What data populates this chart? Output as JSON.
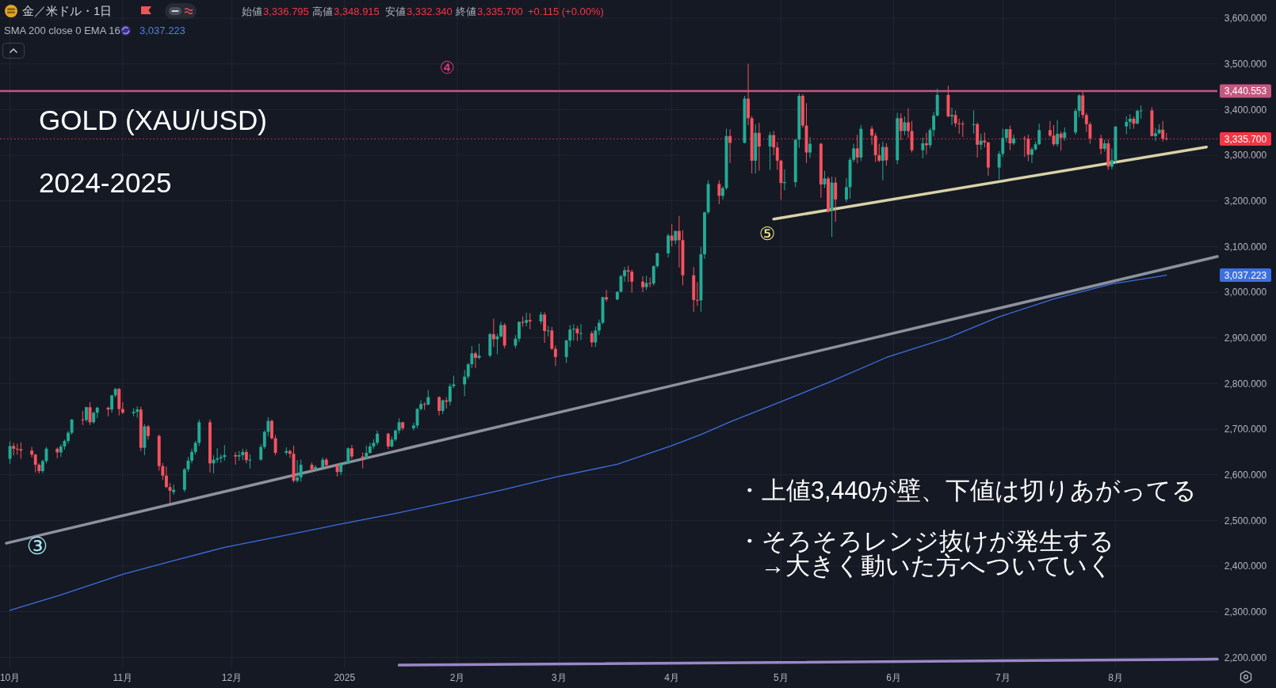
{
  "chart_data": {
    "type": "candlestick",
    "title": "GOLD (XAU/USD)",
    "subtitle": "2024-2025",
    "xlim": [
      "2024-09-30",
      "2025-08-29"
    ],
    "xticks": [
      {
        "value": "2024-10-01",
        "label": "10月"
      },
      {
        "value": "2024-11-01",
        "label": "11月"
      },
      {
        "value": "2024-12-01",
        "label": "12月"
      },
      {
        "value": "2025-01-01",
        "label": "2025"
      },
      {
        "value": "2025-02-01",
        "label": "2月"
      },
      {
        "value": "2025-03-01",
        "label": "3月"
      },
      {
        "value": "2025-04-01",
        "label": "4月"
      },
      {
        "value": "2025-05-01",
        "label": "5月"
      },
      {
        "value": "2025-06-01",
        "label": "6月"
      },
      {
        "value": "2025-07-01",
        "label": "7月"
      },
      {
        "value": "2025-08-01",
        "label": "8月"
      }
    ],
    "ylim": [
      2178,
      3640
    ],
    "yticks": [
      {
        "value": 2200,
        "label": "2,200.000"
      },
      {
        "value": 2300,
        "label": "2,300.000"
      },
      {
        "value": 2400,
        "label": "2,400.000"
      },
      {
        "value": 2500,
        "label": "2,500.000"
      },
      {
        "value": 2600,
        "label": "2,600.000"
      },
      {
        "value": 2700,
        "label": "2,700.000"
      },
      {
        "value": 2800,
        "label": "2,800.000"
      },
      {
        "value": 2900,
        "label": "2,900.000"
      },
      {
        "value": 3000,
        "label": "3,000.000"
      },
      {
        "value": 3100,
        "label": "3,100.000"
      },
      {
        "value": 3200,
        "label": "3,200.000"
      },
      {
        "value": 3300,
        "label": "3,300.000"
      },
      {
        "value": 3400,
        "label": "3,400.000"
      },
      {
        "value": 3500,
        "label": "3,500.000"
      },
      {
        "value": 3600,
        "label": "3,600.000"
      }
    ],
    "grid": true,
    "ref_lines": [
      {
        "axis": "y",
        "value": 3440.553,
        "label": "3,440.553",
        "color": "#c4587f"
      },
      {
        "axis": "y",
        "value": 3335.7,
        "label": "3,335.700",
        "color": "#f23645",
        "line_style": "dotted"
      }
    ],
    "annotations": [
      "金／米ドル・1日",
      "始値",
      "3,336.795",
      "高値",
      "3,348.915",
      "安値",
      "3,332.340",
      "終値",
      "3,335.700",
      "+0.115 (+0.00%)",
      "SMA 200 close 0 EMA 16",
      "3,037.223",
      "・上値3,440が壁、下値は切りあがってる",
      "・そろそろレンジ抜けが発生する",
      "→大きく動いた方へついていく",
      "③",
      "④",
      "⑤",
      "3,037.223"
    ],
    "series": [
      {
        "type": "line",
        "color": "#3d6fe0",
        "x": [
          "2024-10-01",
          "2024-10-15",
          "2024-11-01",
          "2024-11-15",
          "2024-11-29",
          "2024-12-16",
          "2024-12-31",
          "2025-01-16",
          "2025-01-31",
          "2025-02-14",
          "2025-02-28",
          "2025-03-17",
          "2025-04-01",
          "2025-04-09",
          "2025-04-17",
          "2025-05-01",
          "2025-05-15",
          "2025-05-30",
          "2025-06-16",
          "2025-06-30",
          "2025-07-15",
          "2025-07-31",
          "2025-08-15"
        ],
        "values": [
          2303,
          2337,
          2382,
          2412,
          2441,
          2468,
          2492,
          2517,
          2543,
          2568,
          2595,
          2623,
          2664,
          2688,
          2716,
          2760,
          2805,
          2857,
          2900,
          2946,
          2985,
          3018,
          3037
        ]
      },
      {
        "type": "line",
        "color": "#8c919e",
        "x": [
          "2024-09-30",
          "2025-08-29"
        ],
        "values": [
          2450,
          3078
        ]
      },
      {
        "type": "line",
        "color": "#d8d2a8",
        "x": [
          "2025-04-29",
          "2025-08-26"
        ],
        "values": [
          3160,
          3318
        ]
      },
      {
        "type": "line",
        "color": "#9a87c6",
        "x": [
          "2025-01-16",
          "2025-08-29"
        ],
        "values": [
          2183,
          2196
        ]
      },
      {
        "x": [
          "2024-10-01",
          "2024-10-02",
          "2024-10-03",
          "2024-10-04",
          "2024-10-07",
          "2024-10-08",
          "2024-10-09",
          "2024-10-10",
          "2024-10-11",
          "2024-10-14",
          "2024-10-15",
          "2024-10-16",
          "2024-10-17",
          "2024-10-18",
          "2024-10-21",
          "2024-10-22",
          "2024-10-23",
          "2024-10-24",
          "2024-10-25",
          "2024-10-28",
          "2024-10-29",
          "2024-10-30",
          "2024-10-31",
          "2024-11-01",
          "2024-11-04",
          "2024-11-05",
          "2024-11-06",
          "2024-11-07",
          "2024-11-08",
          "2024-11-11",
          "2024-11-12",
          "2024-11-13",
          "2024-11-14",
          "2024-11-15",
          "2024-11-18",
          "2024-11-19",
          "2024-11-20",
          "2024-11-21",
          "2024-11-22",
          "2024-11-25",
          "2024-11-26",
          "2024-11-27",
          "2024-11-28",
          "2024-11-29",
          "2024-12-02",
          "2024-12-03",
          "2024-12-04",
          "2024-12-05",
          "2024-12-06",
          "2024-12-09",
          "2024-12-10",
          "2024-12-11",
          "2024-12-12",
          "2024-12-13",
          "2024-12-16",
          "2024-12-17",
          "2024-12-18",
          "2024-12-19",
          "2024-12-20",
          "2024-12-23",
          "2024-12-24",
          "2024-12-26",
          "2024-12-27",
          "2024-12-30",
          "2024-12-31",
          "2025-01-02",
          "2025-01-03",
          "2025-01-06",
          "2025-01-07",
          "2025-01-08",
          "2025-01-09",
          "2025-01-10",
          "2025-01-13",
          "2025-01-14",
          "2025-01-15",
          "2025-01-16",
          "2025-01-17",
          "2025-01-20",
          "2025-01-21",
          "2025-01-22",
          "2025-01-23",
          "2025-01-24",
          "2025-01-27",
          "2025-01-28",
          "2025-01-29",
          "2025-01-30",
          "2025-01-31",
          "2025-02-03",
          "2025-02-04",
          "2025-02-05",
          "2025-02-06",
          "2025-02-07",
          "2025-02-10",
          "2025-02-11",
          "2025-02-12",
          "2025-02-13",
          "2025-02-14",
          "2025-02-17",
          "2025-02-18",
          "2025-02-19",
          "2025-02-20",
          "2025-02-21",
          "2025-02-24",
          "2025-02-25",
          "2025-02-26",
          "2025-02-27",
          "2025-02-28",
          "2025-03-03",
          "2025-03-04",
          "2025-03-05",
          "2025-03-06",
          "2025-03-07",
          "2025-03-10",
          "2025-03-11",
          "2025-03-12",
          "2025-03-13",
          "2025-03-14",
          "2025-03-17",
          "2025-03-18",
          "2025-03-19",
          "2025-03-20",
          "2025-03-21",
          "2025-03-24",
          "2025-03-25",
          "2025-03-26",
          "2025-03-27",
          "2025-03-28",
          "2025-03-31",
          "2025-04-01",
          "2025-04-02",
          "2025-04-03",
          "2025-04-04",
          "2025-04-07",
          "2025-04-08",
          "2025-04-09",
          "2025-04-10",
          "2025-04-11",
          "2025-04-14",
          "2025-04-15",
          "2025-04-16",
          "2025-04-17",
          "2025-04-21",
          "2025-04-22",
          "2025-04-23",
          "2025-04-24",
          "2025-04-25",
          "2025-04-28",
          "2025-04-29",
          "2025-04-30",
          "2025-05-01",
          "2025-05-02",
          "2025-05-05",
          "2025-05-06",
          "2025-05-07",
          "2025-05-08",
          "2025-05-09",
          "2025-05-12",
          "2025-05-13",
          "2025-05-14",
          "2025-05-15",
          "2025-05-16",
          "2025-05-19",
          "2025-05-20",
          "2025-05-21",
          "2025-05-22",
          "2025-05-23",
          "2025-05-26",
          "2025-05-27",
          "2025-05-28",
          "2025-05-29",
          "2025-05-30",
          "2025-06-02",
          "2025-06-03",
          "2025-06-04",
          "2025-06-05",
          "2025-06-06",
          "2025-06-09",
          "2025-06-10",
          "2025-06-11",
          "2025-06-12",
          "2025-06-13",
          "2025-06-16",
          "2025-06-17",
          "2025-06-18",
          "2025-06-19",
          "2025-06-20",
          "2025-06-23",
          "2025-06-24",
          "2025-06-25",
          "2025-06-26",
          "2025-06-27",
          "2025-06-30",
          "2025-07-01",
          "2025-07-02",
          "2025-07-03",
          "2025-07-04",
          "2025-07-07",
          "2025-07-08",
          "2025-07-09",
          "2025-07-10",
          "2025-07-11",
          "2025-07-14",
          "2025-07-15",
          "2025-07-16",
          "2025-07-17",
          "2025-07-18",
          "2025-07-21",
          "2025-07-22",
          "2025-07-23",
          "2025-07-24",
          "2025-07-25",
          "2025-07-28",
          "2025-07-29",
          "2025-07-30",
          "2025-07-31",
          "2025-08-01",
          "2025-08-04",
          "2025-08-05",
          "2025-08-06",
          "2025-08-07",
          "2025-08-08",
          "2025-08-11",
          "2025-08-12",
          "2025-08-13",
          "2025-08-14",
          "2025-08-15"
        ],
        "ohlc": [
          [
            2635,
            2673,
            2624,
            2663
          ],
          [
            2663,
            2670,
            2642,
            2657
          ],
          [
            2657,
            2668,
            2644,
            2656
          ],
          [
            2656,
            2671,
            2635,
            2653
          ],
          [
            2653,
            2661,
            2638,
            2644
          ],
          [
            2644,
            2646,
            2605,
            2622
          ],
          [
            2622,
            2625,
            2603,
            2608
          ],
          [
            2608,
            2633,
            2604,
            2630
          ],
          [
            2630,
            2661,
            2625,
            2657
          ],
          [
            2657,
            2660,
            2636,
            2649
          ],
          [
            2649,
            2667,
            2639,
            2662
          ],
          [
            2662,
            2677,
            2655,
            2674
          ],
          [
            2674,
            2696,
            2668,
            2692
          ],
          [
            2692,
            2722,
            2688,
            2721
          ],
          [
            2721,
            2740,
            2709,
            2720
          ],
          [
            2720,
            2749,
            2716,
            2748
          ],
          [
            2748,
            2759,
            2709,
            2715
          ],
          [
            2715,
            2738,
            2712,
            2736
          ],
          [
            2736,
            2749,
            2724,
            2747
          ],
          [
            2747,
            2749,
            2728,
            2743
          ],
          [
            2743,
            2775,
            2736,
            2774
          ],
          [
            2774,
            2790,
            2770,
            2788
          ],
          [
            2788,
            2790,
            2730,
            2744
          ],
          [
            2744,
            2759,
            2733,
            2736
          ],
          [
            2735,
            2746,
            2728,
            2738
          ],
          [
            2738,
            2750,
            2725,
            2743
          ],
          [
            2743,
            2749,
            2652,
            2659
          ],
          [
            2659,
            2711,
            2643,
            2706
          ],
          [
            2706,
            2709,
            2677,
            2685
          ],
          [
            2685,
            2688,
            2609,
            2619
          ],
          [
            2619,
            2626,
            2589,
            2598
          ],
          [
            2598,
            2618,
            2571,
            2573
          ],
          [
            2573,
            2582,
            2537,
            2565
          ],
          [
            2562,
            2579,
            2556,
            2567
          ],
          [
            2567,
            2615,
            2562,
            2612
          ],
          [
            2612,
            2639,
            2606,
            2631
          ],
          [
            2631,
            2657,
            2625,
            2650
          ],
          [
            2650,
            2674,
            2644,
            2670
          ],
          [
            2670,
            2721,
            2663,
            2715
          ],
          [
            2715,
            2721,
            2605,
            2625
          ],
          [
            2625,
            2643,
            2603,
            2633
          ],
          [
            2633,
            2658,
            2626,
            2636
          ],
          [
            2636,
            2645,
            2626,
            2639
          ],
          [
            2639,
            2665,
            2631,
            2643
          ],
          [
            2643,
            2650,
            2622,
            2640
          ],
          [
            2640,
            2652,
            2631,
            2643
          ],
          [
            2643,
            2657,
            2632,
            2650
          ],
          [
            2650,
            2656,
            2625,
            2632
          ],
          [
            2632,
            2645,
            2614,
            2633
          ],
          [
            2633,
            2667,
            2631,
            2661
          ],
          [
            2661,
            2697,
            2657,
            2694
          ],
          [
            2694,
            2726,
            2684,
            2718
          ],
          [
            2718,
            2721,
            2677,
            2680
          ],
          [
            2680,
            2687,
            2643,
            2648
          ],
          [
            2648,
            2660,
            2643,
            2652
          ],
          [
            2652,
            2655,
            2637,
            2646
          ],
          [
            2646,
            2664,
            2583,
            2587
          ],
          [
            2587,
            2632,
            2583,
            2594
          ],
          [
            2594,
            2633,
            2585,
            2622
          ],
          [
            2622,
            2627,
            2605,
            2612
          ],
          [
            2612,
            2621,
            2609,
            2617
          ],
          [
            2617,
            2638,
            2615,
            2633
          ],
          [
            2633,
            2637,
            2617,
            2621
          ],
          [
            2621,
            2624,
            2596,
            2606
          ],
          [
            2606,
            2627,
            2599,
            2624
          ],
          [
            2624,
            2660,
            2623,
            2658
          ],
          [
            2658,
            2665,
            2634,
            2640
          ],
          [
            2640,
            2649,
            2614,
            2636
          ],
          [
            2636,
            2664,
            2634,
            2648
          ],
          [
            2648,
            2670,
            2646,
            2662
          ],
          [
            2662,
            2678,
            2657,
            2670
          ],
          [
            2670,
            2697,
            2665,
            2690
          ],
          [
            2690,
            2692,
            2656,
            2662
          ],
          [
            2662,
            2684,
            2660,
            2677
          ],
          [
            2677,
            2699,
            2673,
            2697
          ],
          [
            2697,
            2724,
            2690,
            2715
          ],
          [
            2715,
            2716,
            2697,
            2702
          ],
          [
            2702,
            2714,
            2697,
            2708
          ],
          [
            2708,
            2746,
            2702,
            2744
          ],
          [
            2744,
            2763,
            2741,
            2755
          ],
          [
            2755,
            2759,
            2742,
            2754
          ],
          [
            2754,
            2786,
            2752,
            2770
          ],
          [
            2770,
            2772,
            2730,
            2740
          ],
          [
            2740,
            2765,
            2733,
            2763
          ],
          [
            2763,
            2770,
            2745,
            2760
          ],
          [
            2760,
            2800,
            2752,
            2794
          ],
          [
            2794,
            2817,
            2790,
            2798
          ],
          [
            2798,
            2830,
            2772,
            2815
          ],
          [
            2815,
            2845,
            2810,
            2842
          ],
          [
            2842,
            2882,
            2834,
            2866
          ],
          [
            2866,
            2870,
            2834,
            2856
          ],
          [
            2856,
            2887,
            2853,
            2861
          ],
          [
            2861,
            2911,
            2857,
            2908
          ],
          [
            2908,
            2942,
            2880,
            2897
          ],
          [
            2897,
            2909,
            2864,
            2903
          ],
          [
            2903,
            2935,
            2901,
            2928
          ],
          [
            2928,
            2932,
            2877,
            2883
          ],
          [
            2883,
            2906,
            2877,
            2898
          ],
          [
            2898,
            2936,
            2891,
            2935
          ],
          [
            2935,
            2947,
            2924,
            2933
          ],
          [
            2933,
            2955,
            2925,
            2939
          ],
          [
            2939,
            2954,
            2919,
            2936
          ],
          [
            2936,
            2957,
            2930,
            2951
          ],
          [
            2951,
            2956,
            2889,
            2915
          ],
          [
            2915,
            2926,
            2903,
            2916
          ],
          [
            2916,
            2924,
            2873,
            2876
          ],
          [
            2876,
            2883,
            2838,
            2858
          ],
          [
            2858,
            2896,
            2845,
            2894
          ],
          [
            2894,
            2928,
            2880,
            2918
          ],
          [
            2918,
            2930,
            2894,
            2920
          ],
          [
            2920,
            2926,
            2893,
            2910
          ],
          [
            2910,
            2930,
            2895,
            2910
          ],
          [
            2910,
            2915,
            2880,
            2890
          ],
          [
            2890,
            2925,
            2880,
            2916
          ],
          [
            2916,
            2940,
            2906,
            2933
          ],
          [
            2933,
            2990,
            2930,
            2989
          ],
          [
            2989,
            3005,
            2979,
            2984
          ],
          [
            2984,
            3001,
            2982,
            3001
          ],
          [
            3001,
            3038,
            2999,
            3035
          ],
          [
            3035,
            3055,
            3023,
            3048
          ],
          [
            3048,
            3058,
            3022,
            3045
          ],
          [
            3045,
            3049,
            2999,
            3023
          ],
          [
            3023,
            3035,
            3000,
            3011
          ],
          [
            3011,
            3036,
            3005,
            3020
          ],
          [
            3020,
            3032,
            3011,
            3019
          ],
          [
            3019,
            3059,
            3014,
            3057
          ],
          [
            3057,
            3087,
            3053,
            3085
          ],
          [
            3085,
            3128,
            3076,
            3124
          ],
          [
            3124,
            3149,
            3100,
            3113
          ],
          [
            3113,
            3135,
            3105,
            3134
          ],
          [
            3134,
            3167,
            3054,
            3114
          ],
          [
            3114,
            3136,
            3015,
            3037
          ],
          [
            3037,
            3055,
            2957,
            2983
          ],
          [
            2983,
            3022,
            2970,
            2982
          ],
          [
            2982,
            3099,
            2957,
            3083
          ],
          [
            3083,
            3176,
            3073,
            3175
          ],
          [
            3175,
            3245,
            3171,
            3237
          ],
          [
            3237,
            3245,
            3193,
            3211
          ],
          [
            3211,
            3232,
            3203,
            3228
          ],
          [
            3228,
            3358,
            3224,
            3342
          ],
          [
            3342,
            3357,
            3283,
            3327
          ],
          [
            3327,
            3430,
            3326,
            3424
          ],
          [
            3424,
            3500,
            3366,
            3381
          ],
          [
            3381,
            3386,
            3260,
            3288
          ],
          [
            3288,
            3368,
            3260,
            3349
          ],
          [
            3349,
            3371,
            3266,
            3319
          ],
          [
            3319,
            3351,
            3268,
            3344
          ],
          [
            3344,
            3353,
            3300,
            3317
          ],
          [
            3317,
            3329,
            3268,
            3288
          ],
          [
            3288,
            3290,
            3202,
            3239
          ],
          [
            3239,
            3269,
            3223,
            3241
          ],
          [
            3241,
            3334,
            3230,
            3334
          ],
          [
            3334,
            3435,
            3316,
            3430
          ],
          [
            3430,
            3434,
            3360,
            3365
          ],
          [
            3365,
            3414,
            3283,
            3306
          ],
          [
            3306,
            3339,
            3294,
            3325
          ],
          [
            3325,
            3327,
            3207,
            3236
          ],
          [
            3236,
            3266,
            3228,
            3249
          ],
          [
            3249,
            3253,
            3174,
            3178
          ],
          [
            3178,
            3253,
            3121,
            3240
          ],
          [
            3240,
            3252,
            3154,
            3203
          ],
          [
            3203,
            3250,
            3197,
            3230
          ],
          [
            3230,
            3295,
            3205,
            3290
          ],
          [
            3290,
            3325,
            3285,
            3315
          ],
          [
            3315,
            3345,
            3282,
            3295
          ],
          [
            3295,
            3366,
            3287,
            3358
          ],
          [
            3358,
            3364,
            3323,
            3343
          ],
          [
            3343,
            3349,
            3285,
            3300
          ],
          [
            3300,
            3325,
            3285,
            3288
          ],
          [
            3288,
            3330,
            3245,
            3318
          ],
          [
            3318,
            3326,
            3277,
            3289
          ],
          [
            3289,
            3393,
            3280,
            3381
          ],
          [
            3381,
            3392,
            3333,
            3353
          ],
          [
            3353,
            3385,
            3344,
            3372
          ],
          [
            3372,
            3403,
            3338,
            3353
          ],
          [
            3353,
            3375,
            3306,
            3311
          ],
          [
            3311,
            3339,
            3293,
            3326
          ],
          [
            3326,
            3349,
            3302,
            3322
          ],
          [
            3322,
            3360,
            3316,
            3355
          ],
          [
            3355,
            3395,
            3341,
            3387
          ],
          [
            3387,
            3446,
            3385,
            3432
          ],
          [
            3432,
            3452,
            3383,
            3385
          ],
          [
            3385,
            3404,
            3366,
            3388
          ],
          [
            3388,
            3398,
            3362,
            3370
          ],
          [
            3370,
            3380,
            3347,
            3369
          ],
          [
            3369,
            3375,
            3340,
            3368
          ],
          [
            3368,
            3398,
            3347,
            3368
          ],
          [
            3368,
            3372,
            3295,
            3323
          ],
          [
            3323,
            3347,
            3312,
            3332
          ],
          [
            3332,
            3350,
            3317,
            3328
          ],
          [
            3328,
            3329,
            3255,
            3273
          ],
          [
            3273,
            3309,
            3247,
            3303
          ],
          [
            3303,
            3358,
            3296,
            3338
          ],
          [
            3338,
            3358,
            3328,
            3357
          ],
          [
            3357,
            3365,
            3311,
            3326
          ],
          [
            3326,
            3345,
            3322,
            3337
          ],
          [
            3337,
            3342,
            3296,
            3336
          ],
          [
            3336,
            3345,
            3287,
            3301
          ],
          [
            3301,
            3317,
            3283,
            3313
          ],
          [
            3313,
            3330,
            3310,
            3324
          ],
          [
            3324,
            3369,
            3322,
            3355
          ],
          [
            3355,
            3375,
            3340,
            3343
          ],
          [
            3343,
            3366,
            3320,
            3324
          ],
          [
            3324,
            3377,
            3319,
            3347
          ],
          [
            3347,
            3352,
            3310,
            3338
          ],
          [
            3338,
            3361,
            3332,
            3350
          ],
          [
            3350,
            3402,
            3345,
            3397
          ],
          [
            3397,
            3434,
            3383,
            3431
          ],
          [
            3431,
            3439,
            3381,
            3388
          ],
          [
            3388,
            3393,
            3351,
            3368
          ],
          [
            3368,
            3373,
            3325,
            3337
          ],
          [
            3337,
            3345,
            3302,
            3314
          ],
          [
            3314,
            3334,
            3308,
            3326
          ],
          [
            3326,
            3334,
            3268,
            3275
          ],
          [
            3275,
            3315,
            3269,
            3289
          ],
          [
            3289,
            3363,
            3281,
            3363
          ],
          [
            3363,
            3385,
            3346,
            3373
          ],
          [
            3373,
            3390,
            3357,
            3380
          ],
          [
            3380,
            3385,
            3358,
            3369
          ],
          [
            3369,
            3400,
            3368,
            3397
          ],
          [
            3397,
            3409,
            3380,
            3398
          ],
          [
            3398,
            3405,
            3341,
            3342
          ],
          [
            3342,
            3360,
            3331,
            3348
          ],
          [
            3348,
            3368,
            3346,
            3356
          ],
          [
            3356,
            3375,
            3330,
            3336
          ],
          [
            3336.795,
            3348.915,
            3332.34,
            3335.7
          ]
        ],
        "colors": [
          "#22ab94",
          "#f7525f",
          "#f7525f",
          "#f7525f",
          "#f7525f",
          "#f7525f",
          "#f7525f",
          "#22ab94",
          "#22ab94",
          "#f7525f",
          "#22ab94",
          "#22ab94",
          "#22ab94",
          "#22ab94",
          "#f7525f",
          "#22ab94",
          "#f7525f",
          "#22ab94",
          "#22ab94",
          "#f7525f",
          "#22ab94",
          "#22ab94",
          "#f7525f",
          "#f7525f",
          "#22ab94",
          "#22ab94",
          "#f7525f",
          "#22ab94",
          "#f7525f",
          "#f7525f",
          "#f7525f",
          "#f7525f",
          "#f7525f",
          "#22ab94",
          "#22ab94",
          "#22ab94",
          "#22ab94",
          "#22ab94",
          "#22ab94",
          "#f7525f",
          "#22ab94",
          "#22ab94",
          "#22ab94",
          "#22ab94",
          "#f7525f",
          "#22ab94",
          "#22ab94",
          "#f7525f",
          "#22ab94",
          "#22ab94",
          "#22ab94",
          "#22ab94",
          "#f7525f",
          "#f7525f",
          "#22ab94",
          "#f7525f",
          "#f7525f",
          "#22ab94",
          "#22ab94",
          "#f7525f",
          "#22ab94",
          "#22ab94",
          "#f7525f",
          "#f7525f",
          "#22ab94",
          "#22ab94",
          "#f7525f",
          "#f7525f",
          "#22ab94",
          "#22ab94",
          "#22ab94",
          "#22ab94",
          "#f7525f",
          "#22ab94",
          "#22ab94",
          "#22ab94",
          "#f7525f",
          "#22ab94",
          "#22ab94",
          "#22ab94",
          "#f7525f",
          "#22ab94",
          "#f7525f",
          "#22ab94",
          "#f7525f",
          "#22ab94",
          "#22ab94",
          "#22ab94",
          "#22ab94",
          "#22ab94",
          "#f7525f",
          "#22ab94",
          "#22ab94",
          "#f7525f",
          "#22ab94",
          "#22ab94",
          "#f7525f",
          "#22ab94",
          "#22ab94",
          "#f7525f",
          "#22ab94",
          "#f7525f",
          "#22ab94",
          "#f7525f",
          "#22ab94",
          "#f7525f",
          "#f7525f",
          "#22ab94",
          "#22ab94",
          "#22ab94",
          "#f7525f",
          "#22ab94",
          "#f7525f",
          "#22ab94",
          "#22ab94",
          "#22ab94",
          "#f7525f",
          "#22ab94",
          "#22ab94",
          "#22ab94",
          "#f7525f",
          "#f7525f",
          "#f7525f",
          "#22ab94",
          "#f7525f",
          "#22ab94",
          "#22ab94",
          "#22ab94",
          "#f7525f",
          "#22ab94",
          "#f7525f",
          "#f7525f",
          "#f7525f",
          "#f7525f",
          "#22ab94",
          "#22ab94",
          "#22ab94",
          "#f7525f",
          "#22ab94",
          "#22ab94",
          "#f7525f",
          "#22ab94",
          "#f7525f",
          "#f7525f",
          "#22ab94",
          "#f7525f",
          "#22ab94",
          "#f7525f",
          "#f7525f",
          "#f7525f",
          "#22ab94",
          "#22ab94",
          "#22ab94",
          "#f7525f",
          "#f7525f",
          "#22ab94",
          "#f7525f",
          "#22ab94",
          "#f7525f",
          "#22ab94",
          "#f7525f",
          "#22ab94",
          "#22ab94",
          "#22ab94",
          "#f7525f",
          "#22ab94",
          "#f7525f",
          "#f7525f",
          "#f7525f",
          "#22ab94",
          "#f7525f",
          "#22ab94",
          "#f7525f",
          "#22ab94",
          "#f7525f",
          "#f7525f",
          "#22ab94",
          "#f7525f",
          "#22ab94",
          "#22ab94",
          "#22ab94",
          "#f7525f",
          "#22ab94",
          "#f7525f",
          "#f7525f",
          "#f7525f",
          "#22ab94",
          "#f7525f",
          "#22ab94",
          "#f7525f",
          "#f7525f",
          "#22ab94",
          "#22ab94",
          "#22ab94",
          "#f7525f",
          "#22ab94",
          "#f7525f",
          "#f7525f",
          "#22ab94",
          "#22ab94",
          "#22ab94",
          "#f7525f",
          "#f7525f",
          "#22ab94",
          "#f7525f",
          "#22ab94",
          "#22ab94",
          "#22ab94",
          "#f7525f",
          "#f7525f",
          "#f7525f",
          "#f7525f",
          "#22ab94",
          "#f7525f",
          "#22ab94",
          "#22ab94",
          "#22ab94",
          "#22ab94",
          "#f7525f",
          "#22ab94",
          "#22ab94",
          "#f7525f",
          "#22ab94",
          "#22ab94",
          "#f7525f",
          "#f7525f"
        ]
      }
    ]
  }
}
